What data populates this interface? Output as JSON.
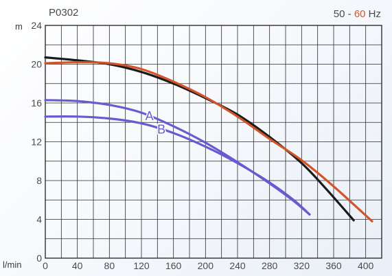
{
  "chart_data": {
    "type": "line",
    "title": "P0302",
    "frequency": {
      "base": "50",
      "separator": " - ",
      "alt": "60",
      "unit": " Hz"
    },
    "xlabel": "l/min",
    "ylabel": "m",
    "xlim": [
      0,
      420
    ],
    "ylim": [
      0,
      24
    ],
    "xticks": [
      0,
      40,
      80,
      120,
      160,
      200,
      240,
      280,
      320,
      360,
      400
    ],
    "yticks": [
      0,
      4,
      8,
      12,
      16,
      20,
      24
    ],
    "grid": true,
    "series": [
      {
        "name": "",
        "color": "#1a1a1a",
        "x": [
          0,
          40,
          80,
          120,
          160,
          200,
          240,
          280,
          320,
          350,
          385
        ],
        "y": [
          20.7,
          20.4,
          20.0,
          19.2,
          18.0,
          16.5,
          14.8,
          12.5,
          9.8,
          7.2,
          3.9
        ]
      },
      {
        "name": "",
        "color": "#d2542a",
        "x": [
          0,
          40,
          80,
          120,
          160,
          200,
          240,
          280,
          320,
          360,
          408
        ],
        "y": [
          20.1,
          20.2,
          20.1,
          19.5,
          18.2,
          16.6,
          14.6,
          12.3,
          10.1,
          7.4,
          3.8
        ]
      },
      {
        "name": "A",
        "color": "#6a5ad0",
        "x": [
          0,
          40,
          80,
          120,
          160,
          200,
          240,
          280,
          310,
          330
        ],
        "y": [
          16.3,
          16.2,
          15.8,
          15.0,
          13.6,
          11.9,
          9.9,
          7.7,
          5.9,
          4.5
        ]
      },
      {
        "name": "B",
        "color": "#6a5ad0",
        "x": [
          0,
          40,
          80,
          120,
          160,
          200,
          240,
          280,
          310,
          330
        ],
        "y": [
          14.6,
          14.6,
          14.4,
          13.9,
          12.9,
          11.5,
          9.8,
          7.8,
          6.0,
          4.5
        ]
      }
    ]
  }
}
